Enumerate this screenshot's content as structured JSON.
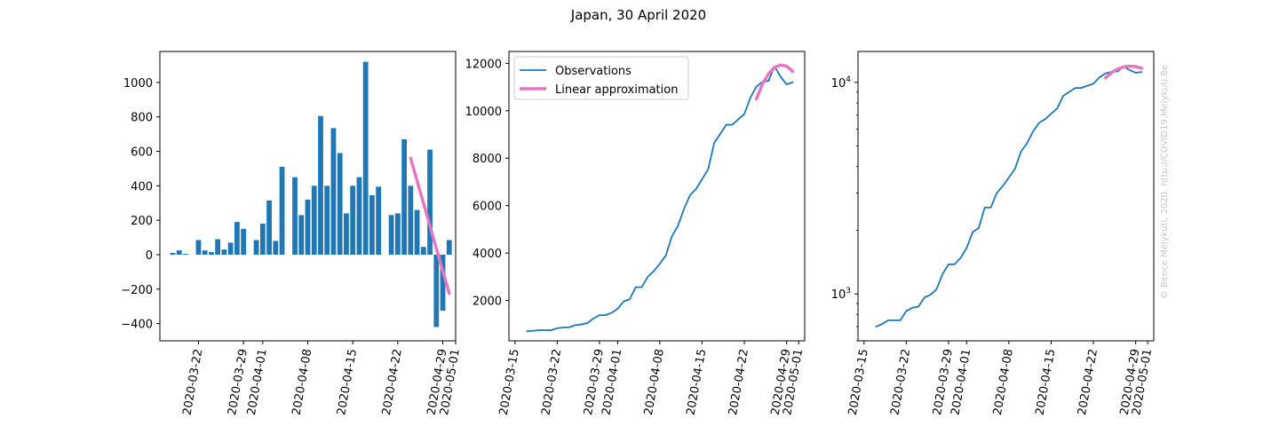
{
  "title": "Japan, 30 April 2020",
  "watermark": "© Bence Mélykúti, 2020. http://COVID19.Melykuti.Be",
  "colors": {
    "observations": "#1f77b4",
    "fit": "#e377c2"
  },
  "chart_data": [
    {
      "type": "bar",
      "title": "",
      "xlabel": "",
      "ylabel": "",
      "x_date_range": [
        "2020-03-16",
        "2020-05-01"
      ],
      "ylim": [
        -500,
        1180
      ],
      "yticks": [
        -400,
        -200,
        0,
        200,
        400,
        600,
        800,
        1000
      ],
      "xtick_labels": [
        "2020-03-22",
        "2020-03-29",
        "2020-04-01",
        "2020-04-08",
        "2020-04-15",
        "2020-04-22",
        "2020-04-29",
        "2020-05-01"
      ],
      "grid": false,
      "series": [
        {
          "dates": [
            "2020-03-18",
            "2020-03-19",
            "2020-03-20",
            "2020-03-21",
            "2020-03-22",
            "2020-03-23",
            "2020-03-24",
            "2020-03-25",
            "2020-03-26",
            "2020-03-27",
            "2020-03-28",
            "2020-03-29",
            "2020-03-30",
            "2020-03-31",
            "2020-04-01",
            "2020-04-02",
            "2020-04-03",
            "2020-04-04",
            "2020-04-05",
            "2020-04-06",
            "2020-04-07",
            "2020-04-08",
            "2020-04-09",
            "2020-04-10",
            "2020-04-11",
            "2020-04-12",
            "2020-04-13",
            "2020-04-14",
            "2020-04-15",
            "2020-04-16",
            "2020-04-17",
            "2020-04-18",
            "2020-04-19",
            "2020-04-20",
            "2020-04-21",
            "2020-04-22",
            "2020-04-23",
            "2020-04-24",
            "2020-04-25",
            "2020-04-26",
            "2020-04-27",
            "2020-04-28",
            "2020-04-29",
            "2020-04-30"
          ],
          "values": [
            10,
            25,
            5,
            0,
            85,
            25,
            15,
            90,
            30,
            70,
            190,
            150,
            0,
            85,
            180,
            315,
            80,
            510,
            0,
            450,
            230,
            320,
            400,
            805,
            400,
            735,
            590,
            240,
            400,
            450,
            1120,
            345,
            395,
            0,
            230,
            240,
            670,
            400,
            260,
            45,
            610,
            -420,
            -325,
            85
          ]
        },
        {
          "name": "Linear approximation",
          "dates": [
            "2020-04-24",
            "2020-04-30"
          ],
          "values": [
            560,
            -225
          ]
        }
      ]
    },
    {
      "type": "line",
      "title": "",
      "xlabel": "",
      "ylabel": "",
      "x_date_range": [
        "2020-03-14",
        "2020-05-02"
      ],
      "ylim": [
        300,
        12500
      ],
      "yticks": [
        2000,
        4000,
        6000,
        8000,
        10000,
        12000
      ],
      "xtick_labels": [
        "2020-03-15",
        "2020-03-22",
        "2020-03-29",
        "2020-04-01",
        "2020-04-08",
        "2020-04-15",
        "2020-04-22",
        "2020-04-29",
        "2020-05-01"
      ],
      "legend": "top-left",
      "grid": false,
      "series": [
        {
          "name": "Observations",
          "dates": [
            "2020-03-17",
            "2020-03-18",
            "2020-03-19",
            "2020-03-20",
            "2020-03-21",
            "2020-03-22",
            "2020-03-23",
            "2020-03-24",
            "2020-03-25",
            "2020-03-26",
            "2020-03-27",
            "2020-03-28",
            "2020-03-29",
            "2020-03-30",
            "2020-03-31",
            "2020-04-01",
            "2020-04-02",
            "2020-04-03",
            "2020-04-04",
            "2020-04-05",
            "2020-04-06",
            "2020-04-07",
            "2020-04-08",
            "2020-04-09",
            "2020-04-10",
            "2020-04-11",
            "2020-04-12",
            "2020-04-13",
            "2020-04-14",
            "2020-04-15",
            "2020-04-16",
            "2020-04-17",
            "2020-04-18",
            "2020-04-19",
            "2020-04-20",
            "2020-04-21",
            "2020-04-22",
            "2020-04-23",
            "2020-04-24",
            "2020-04-25",
            "2020-04-26",
            "2020-04-27",
            "2020-04-28",
            "2020-04-29",
            "2020-04-30"
          ],
          "values": [
            700,
            720,
            750,
            750,
            750,
            830,
            860,
            870,
            960,
            990,
            1050,
            1240,
            1380,
            1380,
            1480,
            1650,
            1960,
            2050,
            2560,
            2560,
            3000,
            3240,
            3550,
            3900,
            4710,
            5150,
            5860,
            6440,
            6700,
            7110,
            7530,
            8640,
            9020,
            9410,
            9410,
            9640,
            9860,
            10550,
            11020,
            11220,
            11260,
            11870,
            11440,
            11110,
            11200
          ]
        },
        {
          "name": "Linear approximation",
          "dates": [
            "2020-04-24",
            "2020-04-25",
            "2020-04-26",
            "2020-04-27",
            "2020-04-28",
            "2020-04-29",
            "2020-04-30"
          ],
          "values": [
            10500,
            11120,
            11550,
            11830,
            11930,
            11880,
            11660
          ]
        }
      ]
    },
    {
      "type": "line",
      "title": "",
      "xlabel": "",
      "ylabel": "",
      "y_scale": "log",
      "x_date_range": [
        "2020-03-14",
        "2020-05-02"
      ],
      "ylim": [
        600,
        14000
      ],
      "ytick_labels": [
        "10^3",
        "10^4"
      ],
      "xtick_labels": [
        "2020-03-15",
        "2020-03-22",
        "2020-03-29",
        "2020-04-01",
        "2020-04-08",
        "2020-04-15",
        "2020-04-22",
        "2020-04-29",
        "2020-05-01"
      ],
      "grid": false,
      "series": [
        {
          "name": "Observations",
          "dates": [
            "2020-03-17",
            "2020-03-18",
            "2020-03-19",
            "2020-03-20",
            "2020-03-21",
            "2020-03-22",
            "2020-03-23",
            "2020-03-24",
            "2020-03-25",
            "2020-03-26",
            "2020-03-27",
            "2020-03-28",
            "2020-03-29",
            "2020-03-30",
            "2020-03-31",
            "2020-04-01",
            "2020-04-02",
            "2020-04-03",
            "2020-04-04",
            "2020-04-05",
            "2020-04-06",
            "2020-04-07",
            "2020-04-08",
            "2020-04-09",
            "2020-04-10",
            "2020-04-11",
            "2020-04-12",
            "2020-04-13",
            "2020-04-14",
            "2020-04-15",
            "2020-04-16",
            "2020-04-17",
            "2020-04-18",
            "2020-04-19",
            "2020-04-20",
            "2020-04-21",
            "2020-04-22",
            "2020-04-23",
            "2020-04-24",
            "2020-04-25",
            "2020-04-26",
            "2020-04-27",
            "2020-04-28",
            "2020-04-29",
            "2020-04-30"
          ],
          "values": [
            700,
            720,
            750,
            750,
            750,
            830,
            860,
            870,
            960,
            990,
            1050,
            1240,
            1380,
            1380,
            1480,
            1650,
            1960,
            2050,
            2560,
            2560,
            3000,
            3240,
            3550,
            3900,
            4710,
            5150,
            5860,
            6440,
            6700,
            7110,
            7530,
            8640,
            9020,
            9410,
            9410,
            9640,
            9860,
            10550,
            11020,
            11220,
            11260,
            11870,
            11440,
            11110,
            11200
          ]
        },
        {
          "name": "Linear approximation",
          "dates": [
            "2020-04-24",
            "2020-04-25",
            "2020-04-26",
            "2020-04-27",
            "2020-04-28",
            "2020-04-29",
            "2020-04-30"
          ],
          "values": [
            10500,
            11120,
            11550,
            11830,
            11930,
            11880,
            11660
          ]
        }
      ]
    }
  ]
}
